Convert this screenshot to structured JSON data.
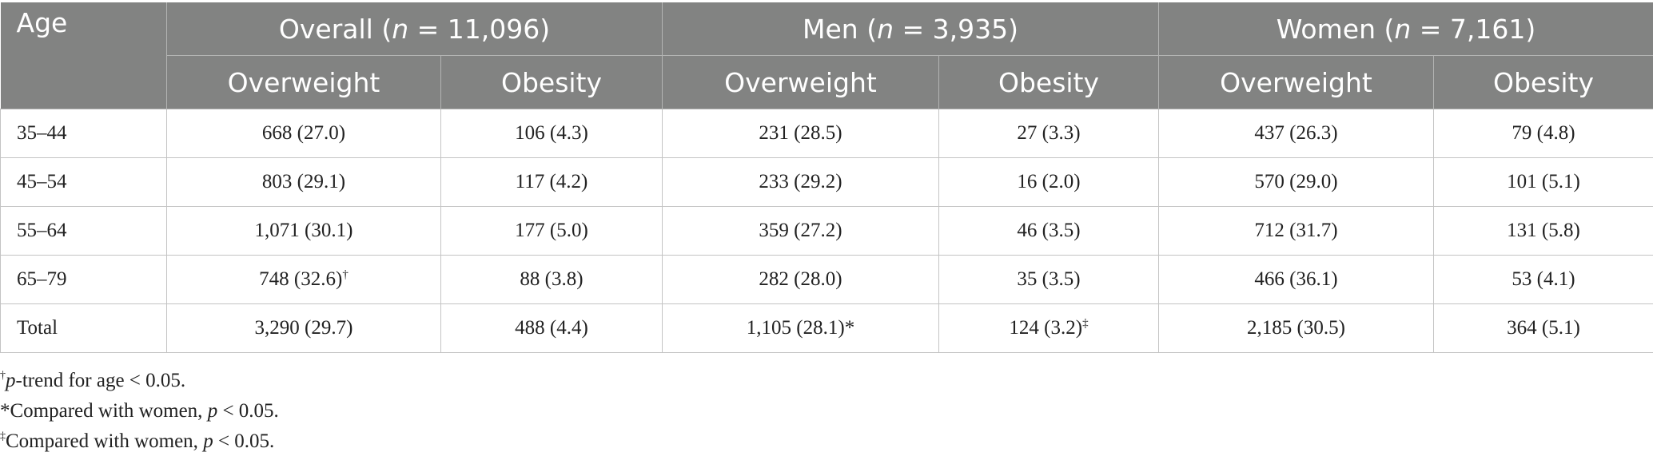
{
  "table": {
    "age_header": "Age",
    "groups": [
      {
        "label_pre": "Overall (",
        "n": "n",
        "label_post": " = 11,096)"
      },
      {
        "label_pre": "Men (",
        "n": "n",
        "label_post": " = 3,935)"
      },
      {
        "label_pre": "Women (",
        "n": "n",
        "label_post": " = 7,161)"
      }
    ],
    "subheaders": [
      "Overweight",
      "Obesity",
      "Overweight",
      "Obesity",
      "Overweight",
      "Obesity"
    ],
    "rows": [
      {
        "age": "35–44",
        "cells": [
          {
            "v": "668 (27.0)",
            "m": ""
          },
          {
            "v": "106 (4.3)",
            "m": ""
          },
          {
            "v": "231 (28.5)",
            "m": ""
          },
          {
            "v": "27 (3.3)",
            "m": ""
          },
          {
            "v": "437 (26.3)",
            "m": ""
          },
          {
            "v": "79 (4.8)",
            "m": ""
          }
        ]
      },
      {
        "age": "45–54",
        "cells": [
          {
            "v": "803 (29.1)",
            "m": ""
          },
          {
            "v": "117 (4.2)",
            "m": ""
          },
          {
            "v": "233 (29.2)",
            "m": ""
          },
          {
            "v": "16 (2.0)",
            "m": ""
          },
          {
            "v": "570 (29.0)",
            "m": ""
          },
          {
            "v": "101 (5.1)",
            "m": ""
          }
        ]
      },
      {
        "age": "55–64",
        "cells": [
          {
            "v": "1,071 (30.1)",
            "m": ""
          },
          {
            "v": "177 (5.0)",
            "m": ""
          },
          {
            "v": "359 (27.2)",
            "m": ""
          },
          {
            "v": "46 (3.5)",
            "m": ""
          },
          {
            "v": "712 (31.7)",
            "m": ""
          },
          {
            "v": "131 (5.8)",
            "m": ""
          }
        ]
      },
      {
        "age": "65–79",
        "cells": [
          {
            "v": "748 (32.6)",
            "m": "†"
          },
          {
            "v": "88 (3.8)",
            "m": ""
          },
          {
            "v": "282 (28.0)",
            "m": ""
          },
          {
            "v": "35 (3.5)",
            "m": ""
          },
          {
            "v": "466 (36.1)",
            "m": ""
          },
          {
            "v": "53 (4.1)",
            "m": ""
          }
        ]
      },
      {
        "age": "Total",
        "cells": [
          {
            "v": "3,290 (29.7)",
            "m": ""
          },
          {
            "v": "488 (4.4)",
            "m": ""
          },
          {
            "v": "1,105 (28.1)*",
            "m": ""
          },
          {
            "v": "124 (3.2)",
            "m": "‡"
          },
          {
            "v": "2,185 (30.5)",
            "m": ""
          },
          {
            "v": "364 (5.1)",
            "m": ""
          }
        ]
      }
    ]
  },
  "footnotes": [
    {
      "mark": "†",
      "italic": "p",
      "text": "-trend for age < 0.05."
    },
    {
      "mark": "",
      "pre": "*Compared with women, ",
      "italic": "p",
      "text": " < 0.05."
    },
    {
      "mark": "‡",
      "pre": "Compared with women, ",
      "italic": "p",
      "text": " < 0.05."
    }
  ]
}
